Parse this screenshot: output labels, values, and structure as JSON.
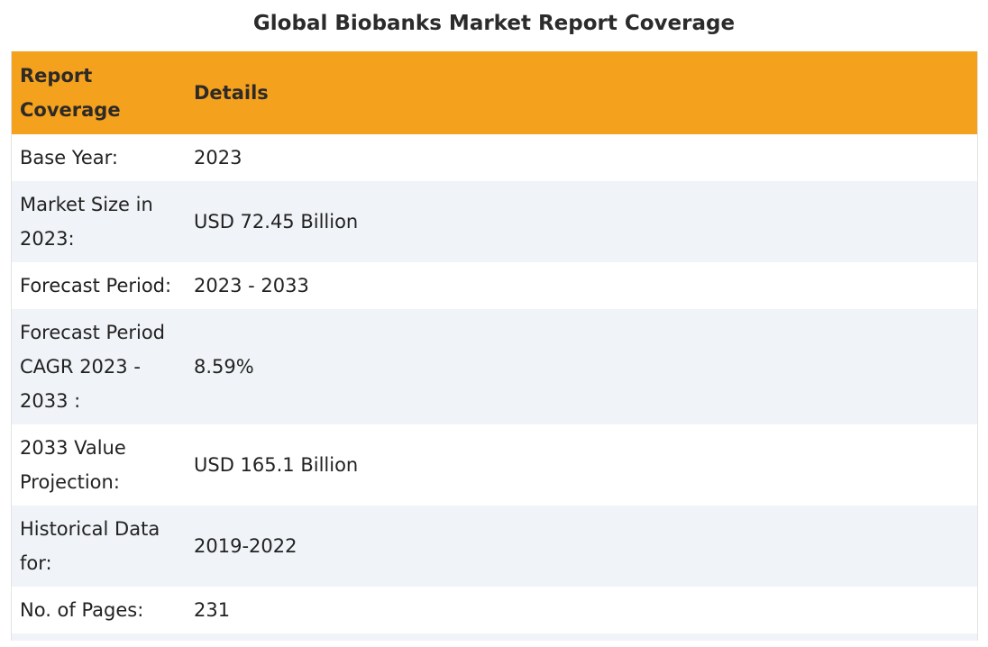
{
  "title": "Global Biobanks Market Report Coverage",
  "table": {
    "headers": [
      "Report Coverage",
      "Details"
    ],
    "rows": [
      {
        "label": "Base Year:",
        "value": "2023"
      },
      {
        "label": "Market Size in 2023:",
        "value": "USD 72.45 Billion"
      },
      {
        "label": "Forecast Period:",
        "value": "2023 - 2033"
      },
      {
        "label": "Forecast Period CAGR 2023 - 2033 :",
        "value": "8.59%"
      },
      {
        "label": "2033 Value Projection:",
        "value": "USD 165.1 Billion"
      },
      {
        "label": "Historical Data for:",
        "value": "2019-2022"
      },
      {
        "label": "No. of Pages:",
        "value": "231"
      }
    ]
  },
  "colors": {
    "header_bg": "#f4a11e",
    "row_alt_bg": "#f0f3f7",
    "text": "#222222"
  }
}
